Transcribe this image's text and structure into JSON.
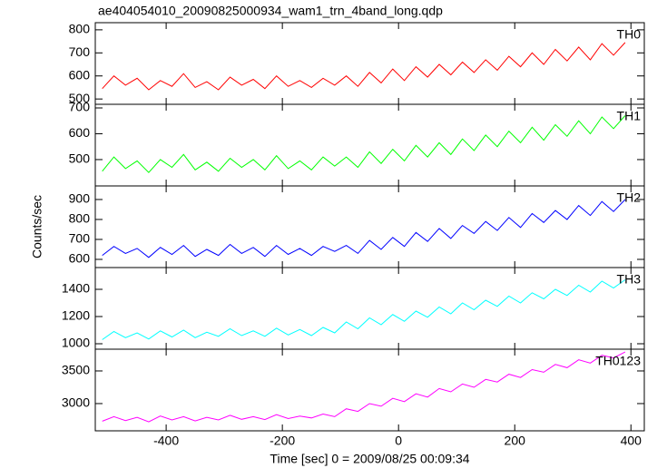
{
  "chart_data": [
    {
      "type": "line",
      "title": "ae404054010_20090825000934_wam1_trn_4band_long.qdp",
      "x": [
        -510,
        -490,
        -470,
        -450,
        -430,
        -410,
        -390,
        -370,
        -350,
        -330,
        -310,
        -290,
        -270,
        -250,
        -230,
        -210,
        -190,
        -170,
        -150,
        -130,
        -110,
        -90,
        -70,
        -50,
        -30,
        -10,
        10,
        30,
        50,
        70,
        90,
        110,
        130,
        150,
        170,
        190,
        210,
        230,
        250,
        270,
        290,
        310,
        330,
        350,
        370,
        390
      ],
      "series": [
        {
          "name": "TH0",
          "color": "#ff0000",
          "values": [
            545,
            600,
            560,
            590,
            540,
            580,
            555,
            610,
            550,
            575,
            540,
            595,
            560,
            585,
            545,
            600,
            555,
            580,
            550,
            590,
            560,
            600,
            555,
            615,
            570,
            630,
            580,
            640,
            595,
            650,
            605,
            660,
            615,
            670,
            625,
            685,
            640,
            700,
            650,
            715,
            665,
            725,
            670,
            740,
            690,
            745
          ]
        }
      ],
      "xlim": [
        -522,
        423
      ],
      "ylim": [
        477,
        831
      ],
      "xticks": [
        -400,
        -200,
        0,
        200,
        400
      ],
      "yticks": [
        500,
        600,
        700,
        800
      ]
    },
    {
      "type": "line",
      "x": [
        -510,
        -490,
        -470,
        -450,
        -430,
        -410,
        -390,
        -370,
        -350,
        -330,
        -310,
        -290,
        -270,
        -250,
        -230,
        -210,
        -190,
        -170,
        -150,
        -130,
        -110,
        -90,
        -70,
        -50,
        -30,
        -10,
        10,
        30,
        50,
        70,
        90,
        110,
        130,
        150,
        170,
        190,
        210,
        230,
        250,
        270,
        290,
        310,
        330,
        350,
        370,
        390
      ],
      "series": [
        {
          "name": "TH1",
          "color": "#00ff00",
          "values": [
            455,
            510,
            465,
            495,
            450,
            500,
            470,
            520,
            460,
            490,
            455,
            505,
            470,
            500,
            460,
            515,
            465,
            495,
            460,
            510,
            475,
            510,
            470,
            530,
            485,
            540,
            495,
            555,
            510,
            565,
            520,
            580,
            535,
            595,
            550,
            610,
            565,
            625,
            575,
            635,
            590,
            650,
            600,
            665,
            620,
            670
          ]
        }
      ],
      "xlim": [
        -522,
        423
      ],
      "ylim": [
        398,
        714
      ],
      "xticks": [
        -400,
        -200,
        0,
        200,
        400
      ],
      "yticks": [
        500,
        600,
        700
      ]
    },
    {
      "type": "line",
      "ylabel": "Counts/sec",
      "x": [
        -510,
        -490,
        -470,
        -450,
        -430,
        -410,
        -390,
        -370,
        -350,
        -330,
        -310,
        -290,
        -270,
        -250,
        -230,
        -210,
        -190,
        -170,
        -150,
        -130,
        -110,
        -90,
        -70,
        -50,
        -30,
        -10,
        10,
        30,
        50,
        70,
        90,
        110,
        130,
        150,
        170,
        190,
        210,
        230,
        250,
        270,
        290,
        310,
        330,
        350,
        370,
        390
      ],
      "series": [
        {
          "name": "TH2",
          "color": "#0000ff",
          "values": [
            620,
            665,
            630,
            655,
            610,
            660,
            625,
            670,
            615,
            650,
            620,
            675,
            630,
            660,
            615,
            670,
            625,
            655,
            620,
            665,
            640,
            670,
            630,
            695,
            650,
            710,
            665,
            735,
            690,
            755,
            705,
            770,
            730,
            790,
            745,
            810,
            760,
            830,
            785,
            845,
            800,
            870,
            820,
            890,
            840,
            900
          ]
        }
      ],
      "xlim": [
        -522,
        423
      ],
      "ylim": [
        559,
        968
      ],
      "xticks": [
        -400,
        -200,
        0,
        200,
        400
      ],
      "yticks": [
        600,
        700,
        800,
        900
      ]
    },
    {
      "type": "line",
      "x": [
        -510,
        -490,
        -470,
        -450,
        -430,
        -410,
        -390,
        -370,
        -350,
        -330,
        -310,
        -290,
        -270,
        -250,
        -230,
        -210,
        -190,
        -170,
        -150,
        -130,
        -110,
        -90,
        -70,
        -50,
        -30,
        -10,
        10,
        30,
        50,
        70,
        90,
        110,
        130,
        150,
        170,
        190,
        210,
        230,
        250,
        270,
        290,
        310,
        330,
        350,
        370,
        390
      ],
      "series": [
        {
          "name": "TH3",
          "color": "#00ffff",
          "values": [
            1030,
            1090,
            1045,
            1080,
            1035,
            1095,
            1050,
            1100,
            1045,
            1085,
            1055,
            1110,
            1060,
            1095,
            1055,
            1115,
            1065,
            1105,
            1060,
            1120,
            1080,
            1160,
            1110,
            1190,
            1140,
            1215,
            1165,
            1240,
            1195,
            1270,
            1220,
            1300,
            1250,
            1320,
            1275,
            1350,
            1300,
            1375,
            1330,
            1400,
            1355,
            1430,
            1380,
            1460,
            1410,
            1470
          ]
        }
      ],
      "xlim": [
        -522,
        423
      ],
      "ylim": [
        960,
        1560
      ],
      "xticks": [
        -400,
        -200,
        0,
        200,
        400
      ],
      "yticks": [
        1000,
        1200,
        1400
      ]
    },
    {
      "type": "line",
      "xlabel": "Time [sec] 0 = 2009/08/25 00:09:34",
      "x": [
        -510,
        -490,
        -470,
        -450,
        -430,
        -410,
        -390,
        -370,
        -350,
        -330,
        -310,
        -290,
        -270,
        -250,
        -230,
        -210,
        -190,
        -170,
        -150,
        -130,
        -110,
        -90,
        -70,
        -50,
        -30,
        -10,
        10,
        30,
        50,
        70,
        90,
        110,
        130,
        150,
        170,
        190,
        210,
        230,
        250,
        270,
        290,
        310,
        330,
        350,
        370,
        390
      ],
      "series": [
        {
          "name": "TH0123",
          "color": "#ff00ff",
          "values": [
            2730,
            2800,
            2740,
            2790,
            2720,
            2810,
            2750,
            2800,
            2735,
            2790,
            2750,
            2820,
            2760,
            2800,
            2755,
            2830,
            2770,
            2810,
            2780,
            2840,
            2800,
            2920,
            2880,
            3000,
            2960,
            3080,
            3030,
            3150,
            3100,
            3230,
            3180,
            3300,
            3250,
            3370,
            3330,
            3450,
            3400,
            3520,
            3480,
            3600,
            3550,
            3670,
            3620,
            3740,
            3700,
            3790
          ]
        }
      ],
      "xlim": [
        -522,
        423
      ],
      "ylim": [
        2583,
        3833
      ],
      "xticks": [
        -400,
        -200,
        0,
        200,
        400
      ],
      "yticks": [
        3000,
        3500
      ]
    }
  ]
}
